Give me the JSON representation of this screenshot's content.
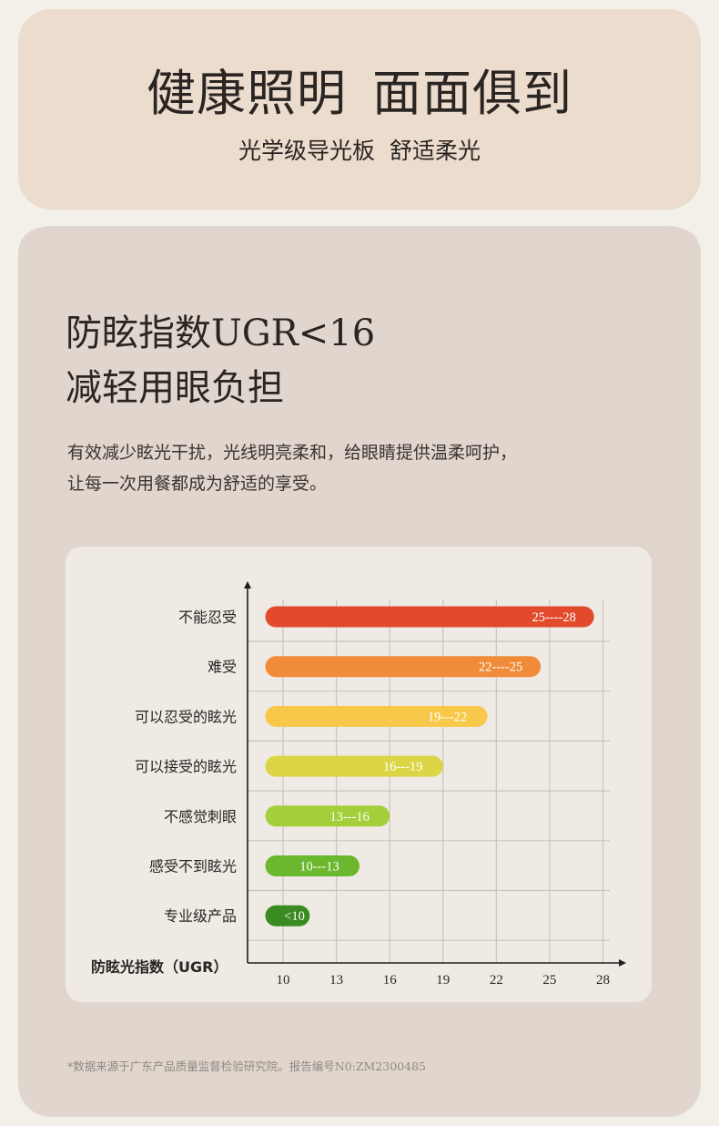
{
  "hero": {
    "title_a": "健康照明",
    "title_b": "面面俱到",
    "sub_a": "光学级导光板",
    "sub_b": "舒适柔光"
  },
  "section": {
    "heading_line1": "防眩指数UGR<16",
    "heading_line2": "减轻用眼负担",
    "desc_line1": "有效减少眩光干扰，光线明亮柔和，给眼睛提供温柔呵护，",
    "desc_line2": "让每一次用餐都成为舒适的享受。"
  },
  "chart_data": {
    "type": "bar",
    "orientation": "horizontal",
    "xlabel": "防眩光指数（UGR）",
    "x_ticks": [
      10,
      13,
      16,
      19,
      22,
      25,
      28
    ],
    "xlim": [
      8,
      29
    ],
    "grid": true,
    "categories": [
      "不能忍受",
      "难受",
      "可以忍受的眩光",
      "可以接受的眩光",
      "不感觉刺眼",
      "感受不到眩光",
      "专业级产品"
    ],
    "bars": [
      {
        "label": "25----28",
        "start": 9,
        "end": 27.5,
        "color": "#e24a2c"
      },
      {
        "label": "22----25",
        "start": 9,
        "end": 24.5,
        "color": "#f08b3a"
      },
      {
        "label": "19---22",
        "start": 9,
        "end": 21.5,
        "color": "#f7c84a"
      },
      {
        "label": "16---19",
        "start": 9,
        "end": 19,
        "color": "#dcd646"
      },
      {
        "label": "13---16",
        "start": 9,
        "end": 16,
        "color": "#a4cf3a"
      },
      {
        "label": "10---13",
        "start": 9,
        "end": 14.3,
        "color": "#6bb82e"
      },
      {
        "label": "<10",
        "start": 9,
        "end": 11.5,
        "color": "#3a8a22"
      }
    ]
  },
  "footnote": "*数据来源于广东产品质量监督检验研究院。报告编号N0:ZM2300485"
}
